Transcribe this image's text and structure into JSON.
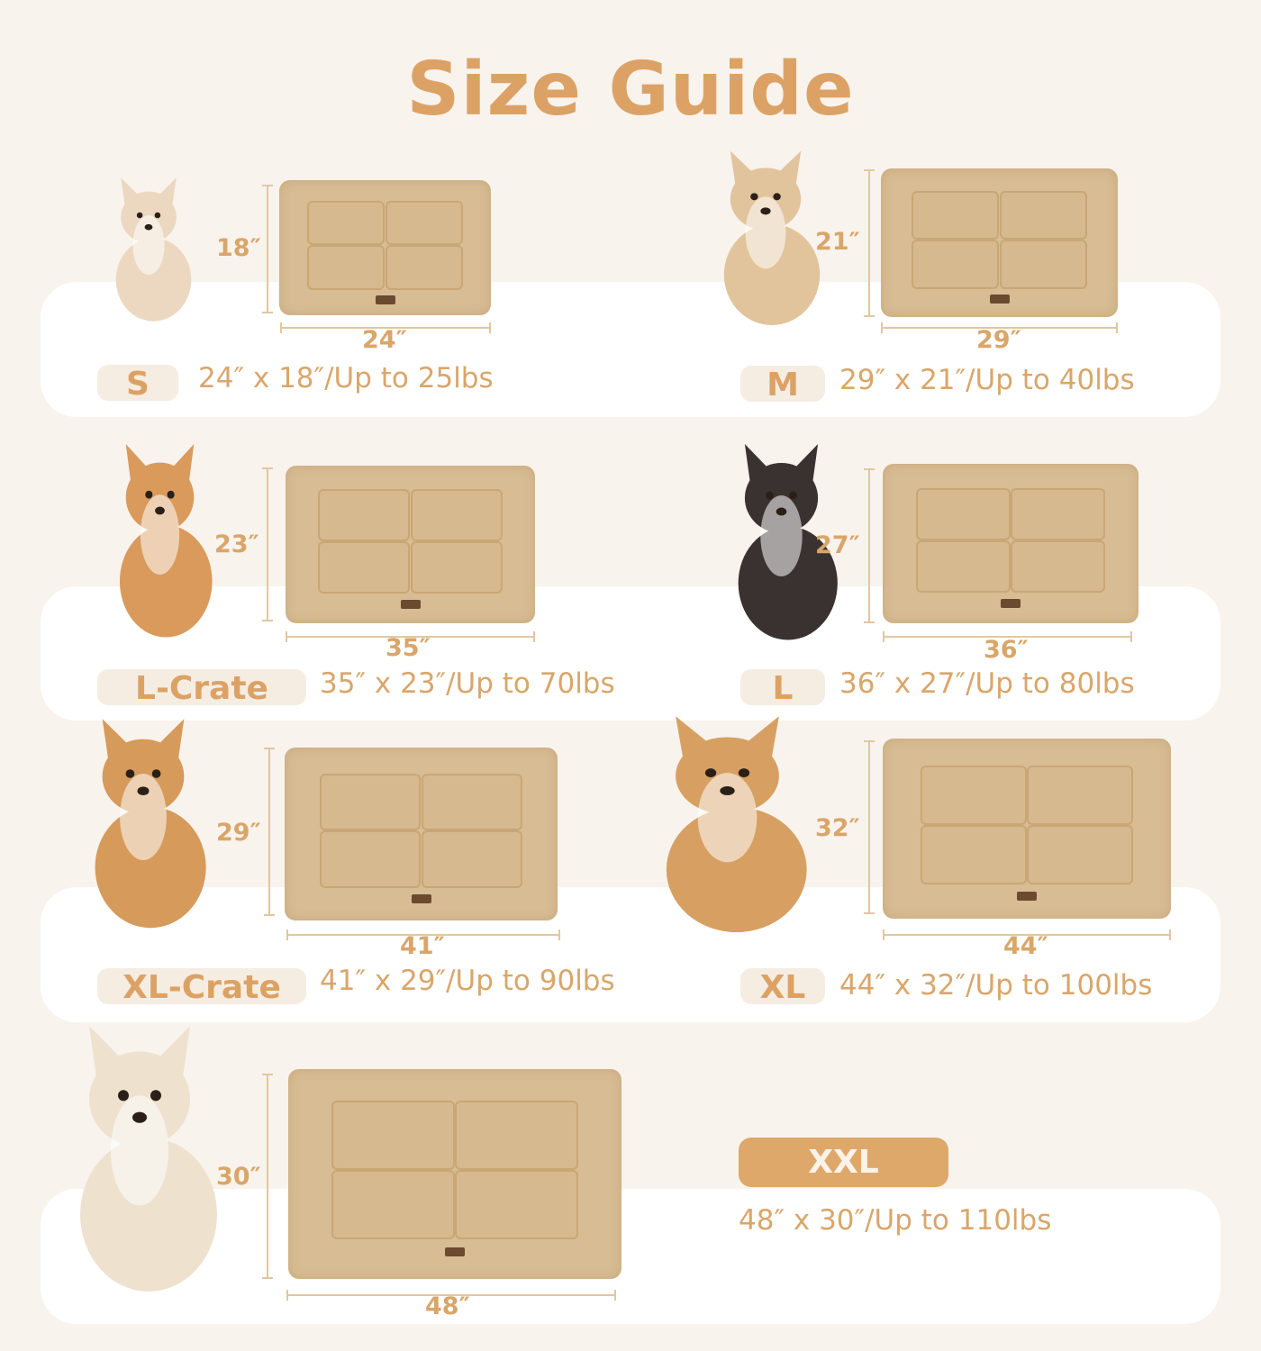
{
  "title": "Size Guide",
  "colors": {
    "accent": "#dca265",
    "background": "#f8f3ed",
    "mat": "#d8bc93"
  },
  "sizes": [
    {
      "label": "S",
      "width": "24″",
      "height": "18″",
      "spec": "24″ x 18″/Up to 25lbs",
      "dog": "chihuahua",
      "dog_color": "#ecd8c0"
    },
    {
      "label": "M",
      "width": "29″",
      "height": "21″",
      "spec": "29″ x 21″/Up to 40lbs",
      "dog": "fluffy-puppy",
      "dog_color": "#e2c49c"
    },
    {
      "label": "L-Crate",
      "width": "35″",
      "height": "23″",
      "spec": "35″ x 23″/Up to 70lbs",
      "dog": "corgi",
      "dog_color": "#d99a5c"
    },
    {
      "label": "L",
      "width": "36″",
      "height": "27″",
      "spec": "36″ x 27″/Up to 80lbs",
      "dog": "border-collie",
      "dog_color": "#3a3230"
    },
    {
      "label": "XL-Crate",
      "width": "41″",
      "height": "29″",
      "spec": "41″ x 29″/Up to 90lbs",
      "dog": "shiba-inu",
      "dog_color": "#d69a5a"
    },
    {
      "label": "XL",
      "width": "44″",
      "height": "32″",
      "spec": "44″ x 32″/Up to 100lbs",
      "dog": "golden-retriever",
      "dog_color": "#d7a062"
    },
    {
      "label": "XXL",
      "width": "48″",
      "height": "30″",
      "spec": "48″ x 30″/Up to 110lbs",
      "dog": "white-golden-retriever",
      "dog_color": "#eee2cf"
    }
  ]
}
